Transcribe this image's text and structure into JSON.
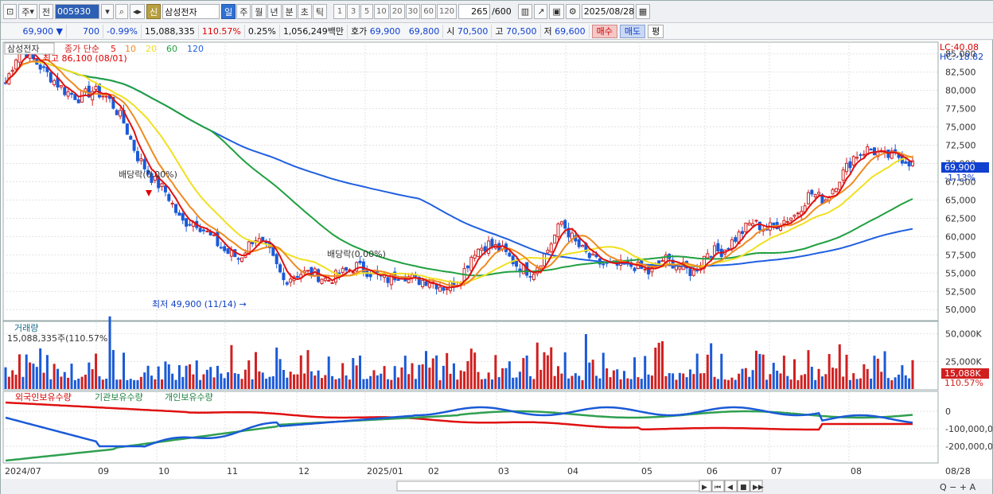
{
  "toolbar": {
    "market": "주",
    "prev": "전",
    "code": "005930",
    "sin": "신",
    "stock_name": "삼성전자",
    "periods": [
      "일",
      "주",
      "월",
      "년",
      "분",
      "초",
      "틱"
    ],
    "active_period": "일",
    "minutes": [
      "1",
      "3",
      "5",
      "10",
      "20",
      "30",
      "60",
      "120"
    ],
    "count": "265",
    "count_total": "/600",
    "date": "2025/08/28"
  },
  "quote": {
    "price": "69,900",
    "arrow": "▼",
    "change": "700",
    "change_pct": "-0.99%",
    "volume": "15,088,335",
    "volume_pct": "110.57%",
    "turnover": "0.25%",
    "amount": "1,056,249백만",
    "ask_label": "호가",
    "ask": "69,900",
    "bid": "69,800",
    "open_label": "시",
    "open": "70,500",
    "high_label": "고",
    "high": "70,500",
    "low_label": "저",
    "low": "69,600",
    "buy": "매수",
    "sell": "매도",
    "avg": "평"
  },
  "price_panel": {
    "stock": "삼성전자",
    "legend_prefix": "종가 단순",
    "ma_labels": [
      "5",
      "10",
      "20",
      "60",
      "120"
    ],
    "max_label": "최고 86,100 (08/01)",
    "min_label": "최저 49,900 (11/14)",
    "dividend1": "배당락(0.00%)",
    "dividend2": "배당락(0.00%)",
    "lc": "LC:40.08",
    "hc": "HC:-18.82",
    "price_tag": "69,900",
    "pct_tag": "-1.13%",
    "y_ticks": [
      "85,000",
      "82,500",
      "80,000",
      "77,500",
      "75,000",
      "72,500",
      "70,000",
      "67,500",
      "65,000",
      "62,500",
      "60,000",
      "57,500",
      "55,000",
      "52,500",
      "50,000"
    ]
  },
  "volume_panel": {
    "title": "거래량",
    "info": "15,088,335주(110.57%)",
    "y_ticks": [
      "50,000K",
      "25,000K"
    ],
    "tag": "15,088K",
    "pct": "110.57%"
  },
  "holding_panel": {
    "legend": [
      "외국인보유수량",
      "기관보유수량",
      "개인보유수량"
    ],
    "y_ticks": [
      "0",
      "-100,000,0",
      "-200,000,0"
    ]
  },
  "x_axis": {
    "labels": [
      "2024/07",
      "09",
      "10",
      "11",
      "12",
      "2025/01",
      "02",
      "03",
      "04",
      "05",
      "06",
      "07",
      "08",
      "08/28"
    ]
  },
  "colors": {
    "ma5": "#e01010",
    "ma10": "#f08a20",
    "ma20": "#f0e020",
    "ma60": "#20a040",
    "ma120": "#2060e0",
    "up": "#d02020",
    "down": "#1a5ad8",
    "foreign": "#1a5ad8",
    "institution": "#30a050",
    "individual": "#e01010"
  },
  "chart_data": {
    "type": "candlestick",
    "months": [
      "2024/07",
      "09",
      "10",
      "11",
      "12",
      "2025/01",
      "02",
      "03",
      "04",
      "05",
      "06",
      "07",
      "08"
    ],
    "ma_values": [
      81,
      86,
      84,
      82,
      80,
      79,
      80,
      79,
      76,
      71,
      68,
      66,
      62,
      62,
      60,
      58,
      57,
      60,
      58,
      54,
      55,
      55,
      54,
      55,
      56,
      55,
      54,
      55,
      54,
      54,
      53,
      54,
      58,
      59,
      58,
      56,
      55,
      58,
      62,
      59,
      57,
      56,
      56,
      56,
      55,
      57,
      56,
      55,
      58,
      58,
      60,
      62,
      61,
      62,
      63,
      66,
      65,
      68,
      71,
      72,
      71,
      71,
      70
    ]
  }
}
